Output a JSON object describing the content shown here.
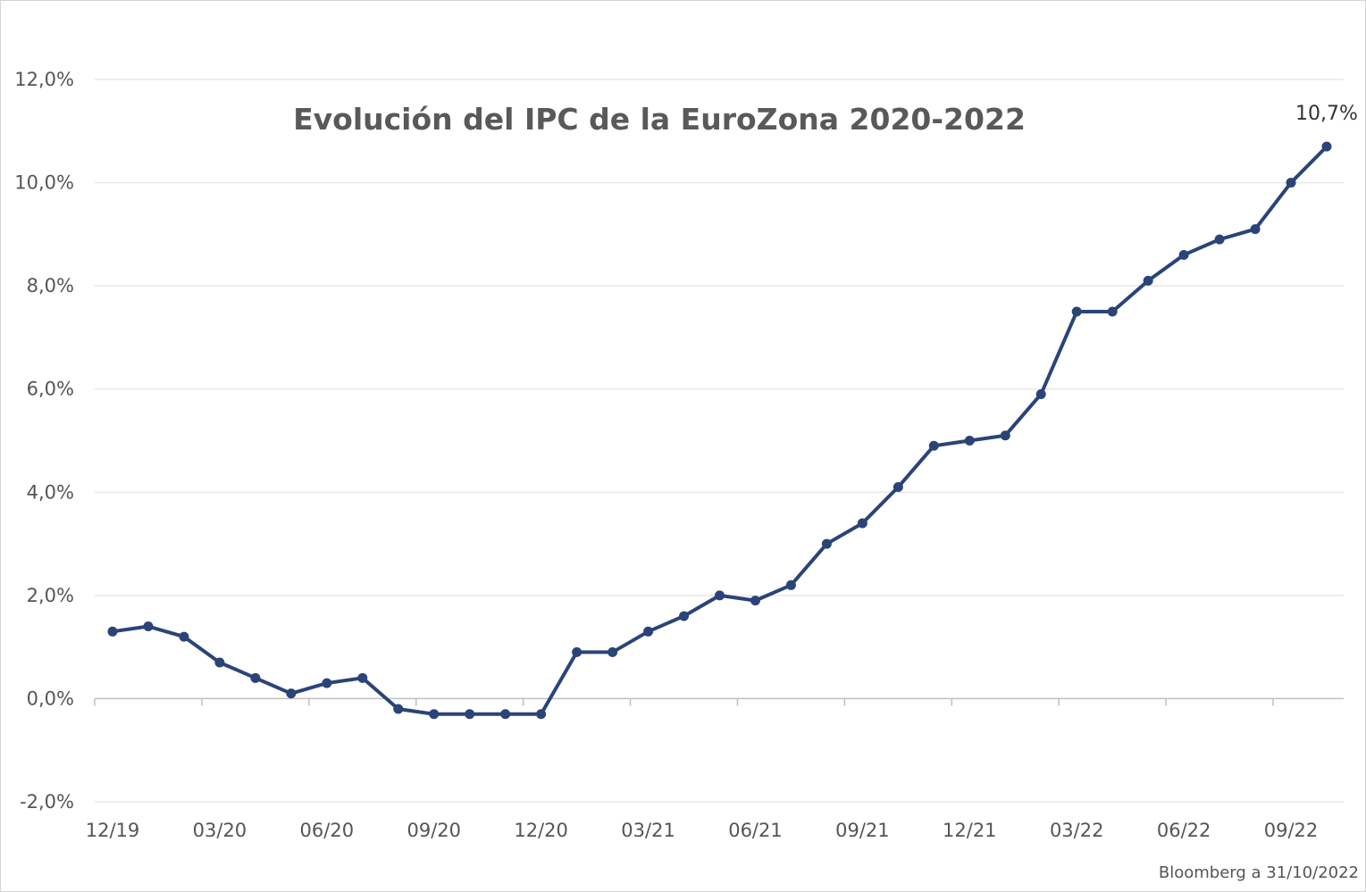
{
  "chart_data": {
    "type": "line",
    "title": "Evolución del IPC de la EuroZona 2020-2022",
    "xlabel": "",
    "ylabel": "",
    "ylim": [
      -2.0,
      12.0
    ],
    "y_ticks": [
      "-2,0%",
      "0,0%",
      "2,0%",
      "4,0%",
      "6,0%",
      "8,0%",
      "10,0%",
      "12,0%"
    ],
    "y_tick_values": [
      -2,
      0,
      2,
      4,
      6,
      8,
      10,
      12
    ],
    "x_tick_labels": [
      "12/19",
      "03/20",
      "06/20",
      "09/20",
      "12/20",
      "03/21",
      "06/21",
      "09/21",
      "12/21",
      "03/22",
      "06/22",
      "09/22"
    ],
    "categories": [
      "12/19",
      "01/20",
      "02/20",
      "03/20",
      "04/20",
      "05/20",
      "06/20",
      "07/20",
      "08/20",
      "09/20",
      "10/20",
      "11/20",
      "12/20",
      "01/21",
      "02/21",
      "03/21",
      "04/21",
      "05/21",
      "06/21",
      "07/21",
      "08/21",
      "09/21",
      "10/21",
      "11/21",
      "12/21",
      "01/22",
      "02/22",
      "03/22",
      "04/22",
      "05/22",
      "06/22",
      "07/22",
      "08/22",
      "09/22",
      "10/22"
    ],
    "series": [
      {
        "values": [
          1.3,
          1.4,
          1.2,
          0.7,
          0.4,
          0.1,
          0.3,
          0.4,
          -0.2,
          -0.3,
          -0.3,
          -0.3,
          -0.3,
          0.9,
          0.9,
          1.3,
          1.6,
          2.0,
          1.9,
          2.2,
          3.0,
          3.4,
          4.1,
          4.9,
          5.0,
          5.1,
          5.9,
          7.5,
          7.5,
          8.1,
          8.6,
          8.9,
          9.1,
          10.0,
          10.7
        ],
        "color": "#2a4478"
      }
    ],
    "last_value_label": "10,7%",
    "grid": true,
    "legend": "none",
    "source": "Bloomberg a 31/10/2022"
  }
}
